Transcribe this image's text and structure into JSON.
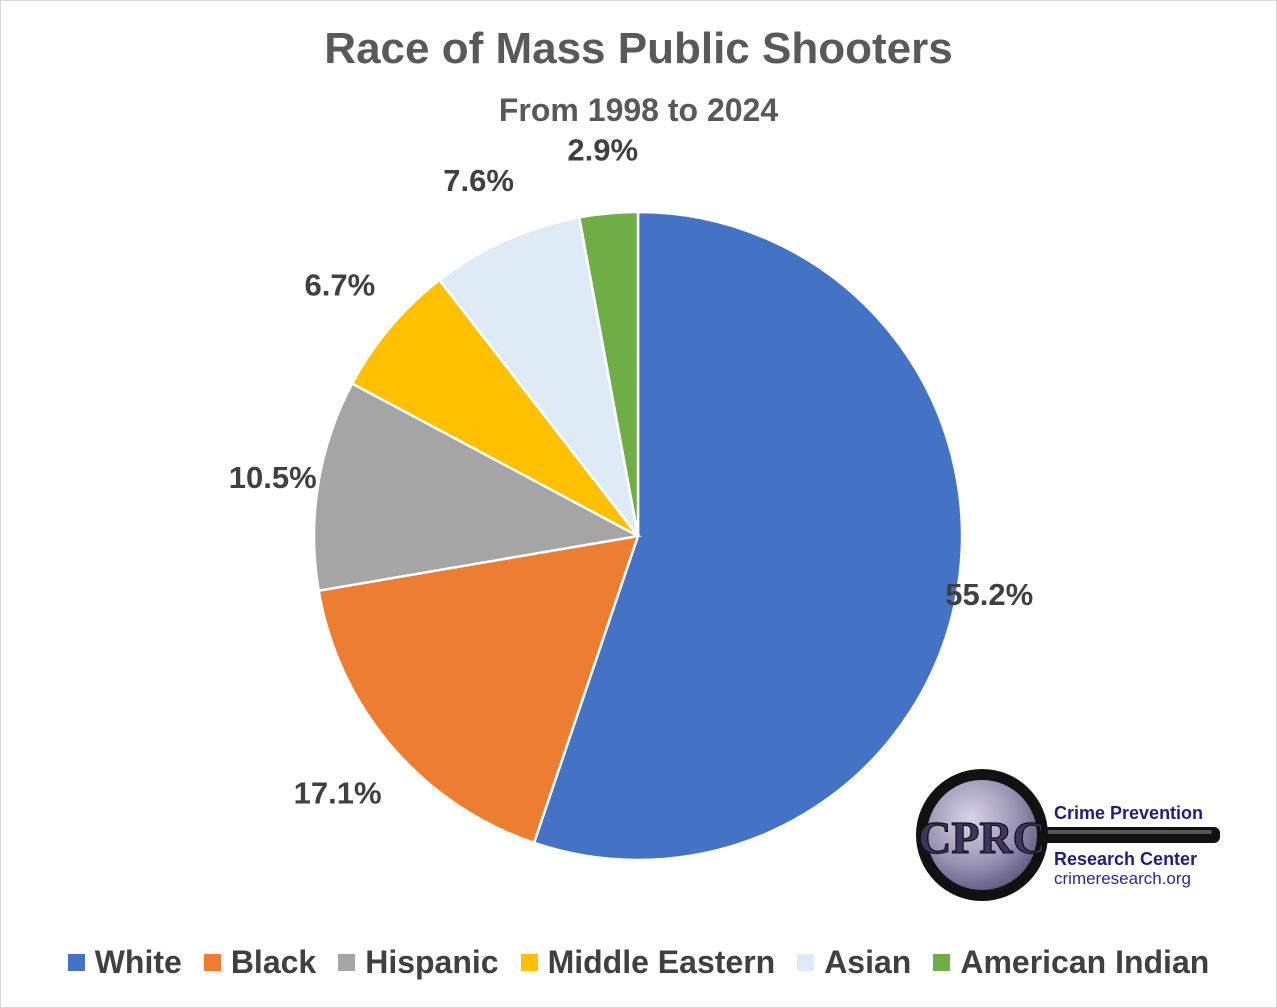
{
  "chart_data": {
    "type": "pie",
    "title": "Race of Mass Public Shooters",
    "subtitle": "From 1998 to 2024",
    "legend_position": "bottom",
    "slices": [
      {
        "name": "White",
        "value": 55.2,
        "label": "55.2%",
        "color": "#4472C4"
      },
      {
        "name": "Black",
        "value": 17.1,
        "label": "17.1%",
        "color": "#ED7D31"
      },
      {
        "name": "Hispanic",
        "value": 10.5,
        "label": "10.5%",
        "color": "#A5A5A5"
      },
      {
        "name": "Middle Eastern",
        "value": 6.7,
        "label": "6.7%",
        "color": "#FFC000"
      },
      {
        "name": "Asian",
        "value": 7.6,
        "label": "7.6%",
        "color": "#DEEBF7"
      },
      {
        "name": "American Indian",
        "value": 2.9,
        "label": "2.9%",
        "color": "#70AD47"
      }
    ]
  },
  "logo": {
    "initials": "CPRC",
    "name_line1": "Crime Prevention",
    "name_line2": "Research Center",
    "website": "crimeresearch.org"
  }
}
